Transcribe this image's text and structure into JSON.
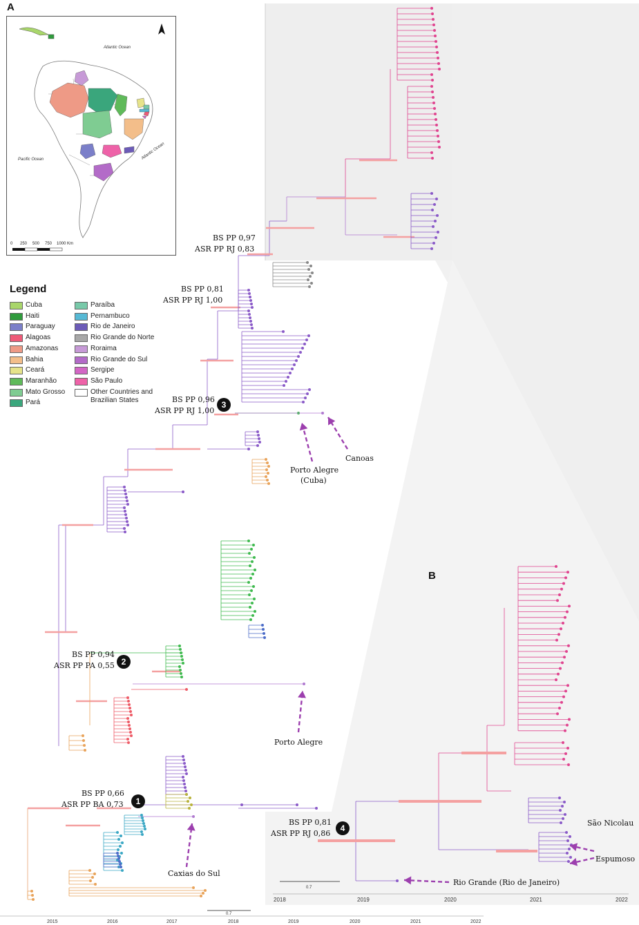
{
  "panel_a": {
    "letter": "A",
    "map": {
      "ocean_atlantic_top": "Atlantic Ocean",
      "ocean_atlantic_right": "Atlantic Ocean",
      "ocean_pacific": "Pacific Ocean",
      "scale_labels": [
        "0",
        "250",
        "500",
        "750",
        "1000 Km"
      ],
      "north_arrow": "north-arrow-icon"
    },
    "legend": {
      "title": "Legend",
      "items": [
        {
          "label": "Cuba",
          "color": "#a9d66b"
        },
        {
          "label": "Haiti",
          "color": "#2f9b3c"
        },
        {
          "label": "Paraguay",
          "color": "#7b7fc9"
        },
        {
          "label": "Alagoas",
          "color": "#ef5a78"
        },
        {
          "label": "Amazonas",
          "color": "#ee9a86"
        },
        {
          "label": "Bahia",
          "color": "#f3be8a"
        },
        {
          "label": "Ceará",
          "color": "#e6e38a"
        },
        {
          "label": "Maranhão",
          "color": "#5fba5a"
        },
        {
          "label": "Mato Grosso",
          "color": "#7fcc92"
        },
        {
          "label": "Pará",
          "color": "#3aa67c"
        },
        {
          "label": "Paraíba",
          "color": "#78c9a9"
        },
        {
          "label": "Pernambuco",
          "color": "#56b9d5"
        },
        {
          "label": "Rio de Janeiro",
          "color": "#6c5bb8"
        },
        {
          "label": "Rio Grande do Norte",
          "color": "#a8a8a8"
        },
        {
          "label": "Roraima",
          "color": "#c79ad7"
        },
        {
          "label": "Rio Grande do Sul",
          "color": "#b36bc8"
        },
        {
          "label": "Sergipe",
          "color": "#d366c5"
        },
        {
          "label": "São Paulo",
          "color": "#ee62a8"
        },
        {
          "label": "Other Countries and Brazilian States",
          "color": "#ffffff"
        }
      ]
    },
    "nodes": [
      {
        "id": "1",
        "bs": "BS PP 0,66",
        "asr": "ASR PP BA 0,73"
      },
      {
        "id": "2",
        "bs": "BS PP 0,94",
        "asr": "ASR PP PA 0,55"
      },
      {
        "id": "3",
        "bs": "BS PP 0,96",
        "asr": "ASR PP RJ 1,00"
      },
      {
        "id": "",
        "bs": "BS PP 0,97",
        "asr": "ASR PP RJ 0,83"
      },
      {
        "id": "",
        "bs": "BS PP 0,81",
        "asr": "ASR PP RJ 1,00"
      }
    ],
    "callouts": {
      "porto_alegre_cuba_1": "Porto Alegre",
      "porto_alegre_cuba_2": "(Cuba)",
      "canoas": "Canoas",
      "porto_alegre": "Porto Alegre",
      "caxias": "Caxias do Sul"
    },
    "x_ticks": [
      "2015",
      "2016",
      "2017",
      "2018",
      "2019",
      "2020",
      "2021",
      "2022"
    ],
    "scale_label": "0.7"
  },
  "panel_b": {
    "letter": "B",
    "node": {
      "id": "4",
      "bs": "BS PP 0,81",
      "asr": "ASR PP RJ 0,86"
    },
    "callouts": {
      "sao_nicolau": "São Nicolau",
      "espumoso": "Espumoso",
      "rio_grande": "Rio Grande (Rio de Janeiro)"
    },
    "x_ticks": [
      "2018",
      "2019",
      "2020",
      "2021",
      "2022"
    ],
    "scale_label": "0.7"
  }
}
